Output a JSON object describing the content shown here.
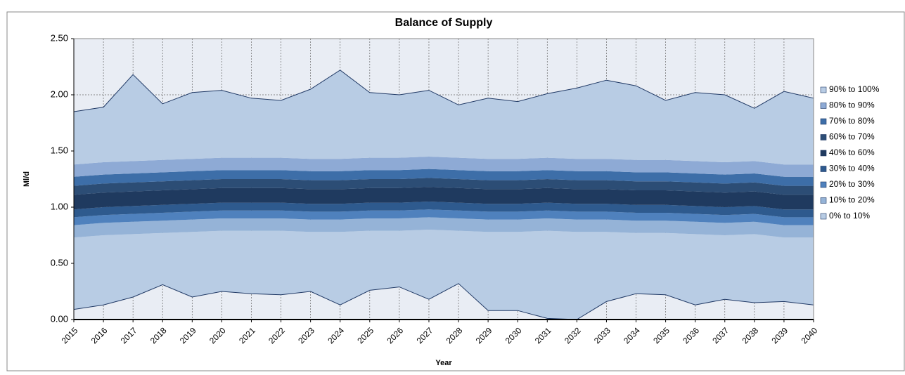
{
  "chart_data": {
    "type": "stacked-area",
    "title": "Balance of Supply",
    "x_label": "Year",
    "y_label": "Ml/d",
    "x": [
      2015,
      2016,
      2017,
      2018,
      2019,
      2020,
      2021,
      2022,
      2023,
      2024,
      2025,
      2026,
      2027,
      2028,
      2029,
      2030,
      2031,
      2032,
      2033,
      2034,
      2035,
      2036,
      2037,
      2038,
      2039,
      2040
    ],
    "xlim": [
      2015,
      2040
    ],
    "ylim": [
      0,
      2.5
    ],
    "yticks": [
      {
        "value": 0,
        "label": "0.00"
      },
      {
        "value": 0.5,
        "label": "0.50"
      },
      {
        "value": 1,
        "label": "1.00"
      },
      {
        "value": 1.5,
        "label": "1.50"
      },
      {
        "value": 2,
        "label": "2.00"
      },
      {
        "value": 2.5,
        "label": "2.50"
      }
    ],
    "grid": true,
    "legend": "right",
    "base": [
      0.09,
      0.13,
      0.2,
      0.31,
      0.2,
      0.25,
      0.23,
      0.22,
      0.25,
      0.13,
      0.26,
      0.29,
      0.18,
      0.32,
      0.08,
      0.08,
      0.01,
      0.0,
      0.16,
      0.23,
      0.22,
      0.13,
      0.18,
      0.15,
      0.16,
      0.13
    ],
    "series": [
      {
        "name": "0% to 10%",
        "color": "#b8cce4",
        "values": [
          0.64,
          0.62,
          0.56,
          0.46,
          0.58,
          0.54,
          0.56,
          0.57,
          0.53,
          0.65,
          0.53,
          0.5,
          0.62,
          0.47,
          0.7,
          0.7,
          0.78,
          0.78,
          0.62,
          0.54,
          0.55,
          0.63,
          0.57,
          0.61,
          0.57,
          0.6
        ]
      },
      {
        "name": "10% to 20%",
        "color": "#95b3d7",
        "values": [
          0.11,
          0.11,
          0.11,
          0.11,
          0.11,
          0.11,
          0.11,
          0.11,
          0.11,
          0.11,
          0.11,
          0.11,
          0.11,
          0.11,
          0.11,
          0.11,
          0.11,
          0.11,
          0.11,
          0.11,
          0.11,
          0.11,
          0.11,
          0.11,
          0.11,
          0.11
        ]
      },
      {
        "name": "20% to 30%",
        "color": "#4f81bd",
        "values": [
          0.07,
          0.07,
          0.07,
          0.07,
          0.07,
          0.07,
          0.07,
          0.07,
          0.07,
          0.07,
          0.07,
          0.07,
          0.07,
          0.07,
          0.07,
          0.07,
          0.07,
          0.07,
          0.07,
          0.07,
          0.07,
          0.07,
          0.07,
          0.07,
          0.07,
          0.07
        ]
      },
      {
        "name": "30% to 40%",
        "color": "#2e5a8e",
        "values": [
          0.07,
          0.07,
          0.07,
          0.07,
          0.07,
          0.07,
          0.07,
          0.07,
          0.07,
          0.07,
          0.07,
          0.07,
          0.07,
          0.07,
          0.07,
          0.07,
          0.07,
          0.07,
          0.07,
          0.07,
          0.07,
          0.07,
          0.07,
          0.07,
          0.07,
          0.07
        ]
      },
      {
        "name": "40% to 60%",
        "color": "#1f3a5f",
        "values": [
          0.13,
          0.13,
          0.13,
          0.13,
          0.13,
          0.13,
          0.13,
          0.13,
          0.13,
          0.13,
          0.13,
          0.13,
          0.13,
          0.13,
          0.13,
          0.13,
          0.13,
          0.13,
          0.13,
          0.13,
          0.13,
          0.13,
          0.13,
          0.13,
          0.13,
          0.13
        ]
      },
      {
        "name": "60% to 70%",
        "color": "#2c4d75",
        "values": [
          0.08,
          0.08,
          0.08,
          0.08,
          0.08,
          0.08,
          0.08,
          0.08,
          0.08,
          0.08,
          0.08,
          0.08,
          0.08,
          0.08,
          0.08,
          0.08,
          0.08,
          0.08,
          0.08,
          0.08,
          0.08,
          0.08,
          0.08,
          0.08,
          0.08,
          0.08
        ]
      },
      {
        "name": "70% to 80%",
        "color": "#3d6ea8",
        "values": [
          0.08,
          0.08,
          0.08,
          0.08,
          0.08,
          0.08,
          0.08,
          0.08,
          0.08,
          0.08,
          0.08,
          0.08,
          0.08,
          0.08,
          0.08,
          0.08,
          0.08,
          0.08,
          0.08,
          0.08,
          0.08,
          0.08,
          0.08,
          0.08,
          0.08,
          0.08
        ]
      },
      {
        "name": "80% to 90%",
        "color": "#8eaad5",
        "values": [
          0.11,
          0.11,
          0.11,
          0.11,
          0.11,
          0.11,
          0.11,
          0.11,
          0.11,
          0.11,
          0.11,
          0.11,
          0.11,
          0.11,
          0.11,
          0.11,
          0.11,
          0.11,
          0.11,
          0.11,
          0.11,
          0.11,
          0.11,
          0.11,
          0.11,
          0.11
        ]
      },
      {
        "name": "90% to 100%",
        "color": "#b8cce4",
        "values": [
          0.47,
          0.49,
          0.77,
          0.5,
          0.59,
          0.6,
          0.53,
          0.51,
          0.62,
          0.79,
          0.58,
          0.56,
          0.59,
          0.47,
          0.54,
          0.51,
          0.57,
          0.63,
          0.7,
          0.66,
          0.53,
          0.61,
          0.6,
          0.47,
          0.65,
          0.59
        ]
      }
    ]
  }
}
